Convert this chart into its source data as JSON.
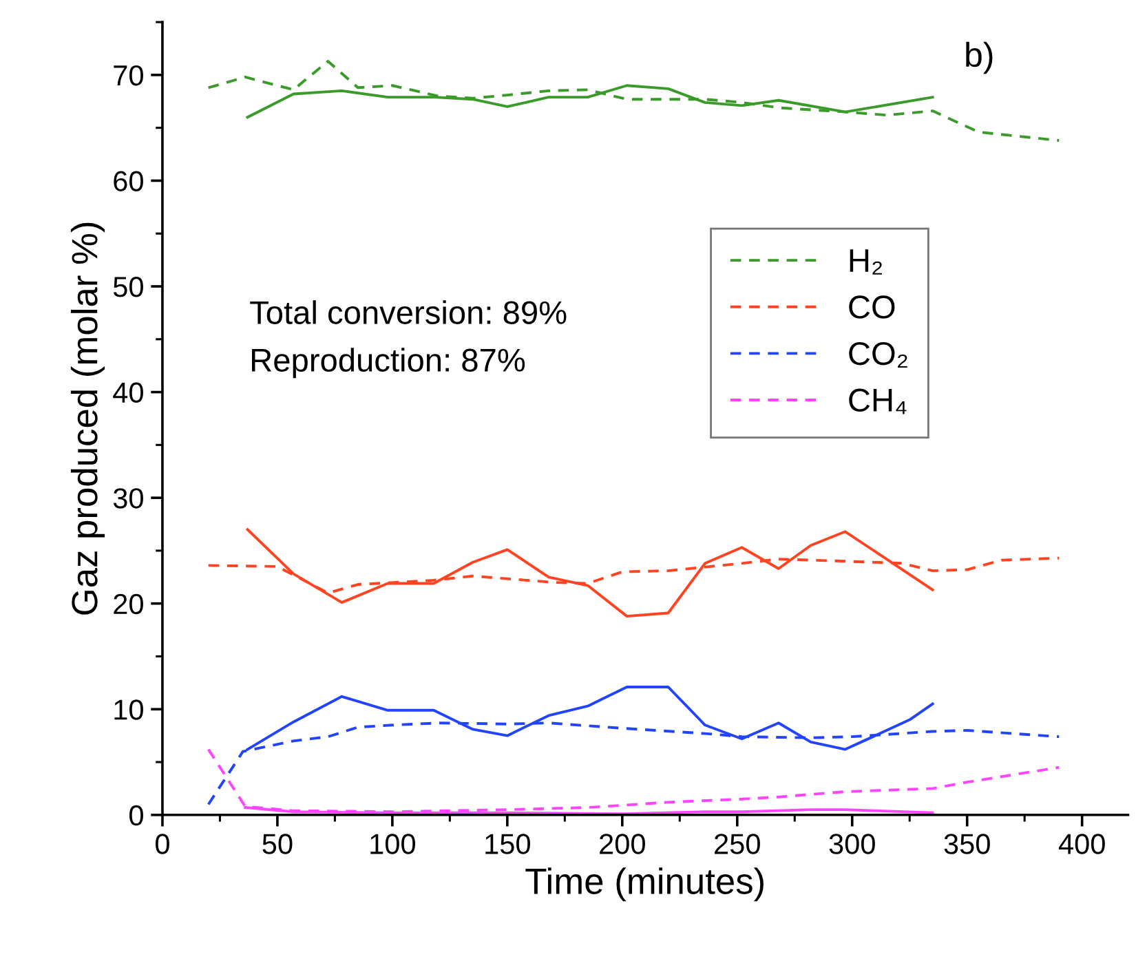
{
  "chart_data": {
    "type": "line",
    "xlabel": "Time (minutes)",
    "ylabel": "Gaz produced (molar %)",
    "xlim": [
      0,
      420
    ],
    "xticks": [
      0,
      50,
      100,
      150,
      200,
      250,
      300,
      350,
      400
    ],
    "ylim": [
      0,
      75
    ],
    "yticks": [
      0,
      10,
      20,
      30,
      40,
      50,
      60,
      70
    ],
    "grid": false,
    "legend": "top right",
    "marker": "none",
    "annotations": [
      "b)",
      "Total conversion: 89%",
      "Reproduction: 87%"
    ],
    "series": [
      {
        "name": "H₂",
        "color": "#3a9a2a",
        "line_style": "dashed",
        "x": [
          20,
          36,
          57,
          72,
          85,
          100,
          120,
          135,
          150,
          168,
          185,
          202,
          220,
          236,
          252,
          268,
          297,
          315,
          335,
          355,
          390
        ],
        "values": [
          68.8,
          69.8,
          68.6,
          71.3,
          68.8,
          69.0,
          68.0,
          67.8,
          68.1,
          68.5,
          68.6,
          67.7,
          67.7,
          67.7,
          67.4,
          66.9,
          66.5,
          66.2,
          66.6,
          64.6,
          63.8
        ]
      },
      {
        "name": "CO",
        "color": "#ff4422",
        "line_style": "dashed",
        "x": [
          20,
          50,
          72,
          85,
          118,
          135,
          170,
          185,
          200,
          220,
          252,
          268,
          297,
          322,
          335,
          350,
          365,
          390
        ],
        "values": [
          23.6,
          23.5,
          21.0,
          21.8,
          22.2,
          22.6,
          22.0,
          21.9,
          23.0,
          23.1,
          23.8,
          24.2,
          24.0,
          23.8,
          23.1,
          23.2,
          24.1,
          24.3
        ]
      },
      {
        "name": "CO₂",
        "color": "#2244ff",
        "line_style": "dashed",
        "x": [
          20,
          35,
          57,
          72,
          85,
          100,
          120,
          150,
          168,
          200,
          236,
          252,
          282,
          300,
          335,
          350,
          390
        ],
        "values": [
          1.0,
          6.0,
          7.0,
          7.4,
          8.3,
          8.5,
          8.7,
          8.6,
          8.7,
          8.2,
          7.7,
          7.4,
          7.3,
          7.4,
          7.9,
          8.0,
          7.4
        ]
      },
      {
        "name": "CH₄",
        "color": "#ff44ff",
        "line_style": "dashed",
        "x": [
          20,
          36,
          57,
          100,
          150,
          185,
          220,
          252,
          268,
          297,
          335,
          350,
          390
        ],
        "values": [
          6.2,
          0.8,
          0.4,
          0.3,
          0.5,
          0.7,
          1.2,
          1.5,
          1.7,
          2.2,
          2.5,
          3.1,
          4.5
        ]
      },
      {
        "color": "#3a9a2a",
        "line_style": "solid",
        "x": [
          37,
          57,
          78,
          98,
          118,
          135,
          150,
          168,
          185,
          202,
          220,
          236,
          252,
          268,
          297,
          335
        ],
        "values": [
          66.0,
          68.2,
          68.5,
          67.9,
          67.9,
          67.7,
          67.0,
          67.9,
          67.9,
          69.0,
          68.7,
          67.4,
          67.1,
          67.6,
          66.5,
          67.9
        ]
      },
      {
        "color": "#ff4422",
        "line_style": "solid",
        "x": [
          37,
          57,
          78,
          98,
          118,
          135,
          150,
          168,
          185,
          202,
          220,
          236,
          252,
          268,
          282,
          297,
          335
        ],
        "values": [
          27.0,
          22.8,
          20.1,
          21.9,
          21.9,
          23.9,
          25.1,
          22.5,
          21.7,
          18.8,
          19.1,
          23.8,
          25.3,
          23.3,
          25.5,
          26.8,
          21.3
        ]
      },
      {
        "color": "#2244ff",
        "line_style": "solid",
        "x": [
          37,
          57,
          78,
          98,
          118,
          135,
          150,
          168,
          185,
          202,
          220,
          236,
          252,
          268,
          282,
          297,
          325,
          335
        ],
        "values": [
          6.2,
          8.8,
          11.2,
          9.9,
          9.9,
          8.1,
          7.5,
          9.4,
          10.3,
          12.1,
          12.1,
          8.5,
          7.2,
          8.7,
          6.9,
          6.2,
          9.0,
          10.5
        ]
      },
      {
        "color": "#ff44ff",
        "line_style": "solid",
        "x": [
          36,
          57,
          100,
          150,
          200,
          236,
          252,
          282,
          297,
          335
        ],
        "values": [
          0.7,
          0.3,
          0.2,
          0.2,
          0.1,
          0.3,
          0.3,
          0.5,
          0.5,
          0.2
        ]
      }
    ]
  }
}
